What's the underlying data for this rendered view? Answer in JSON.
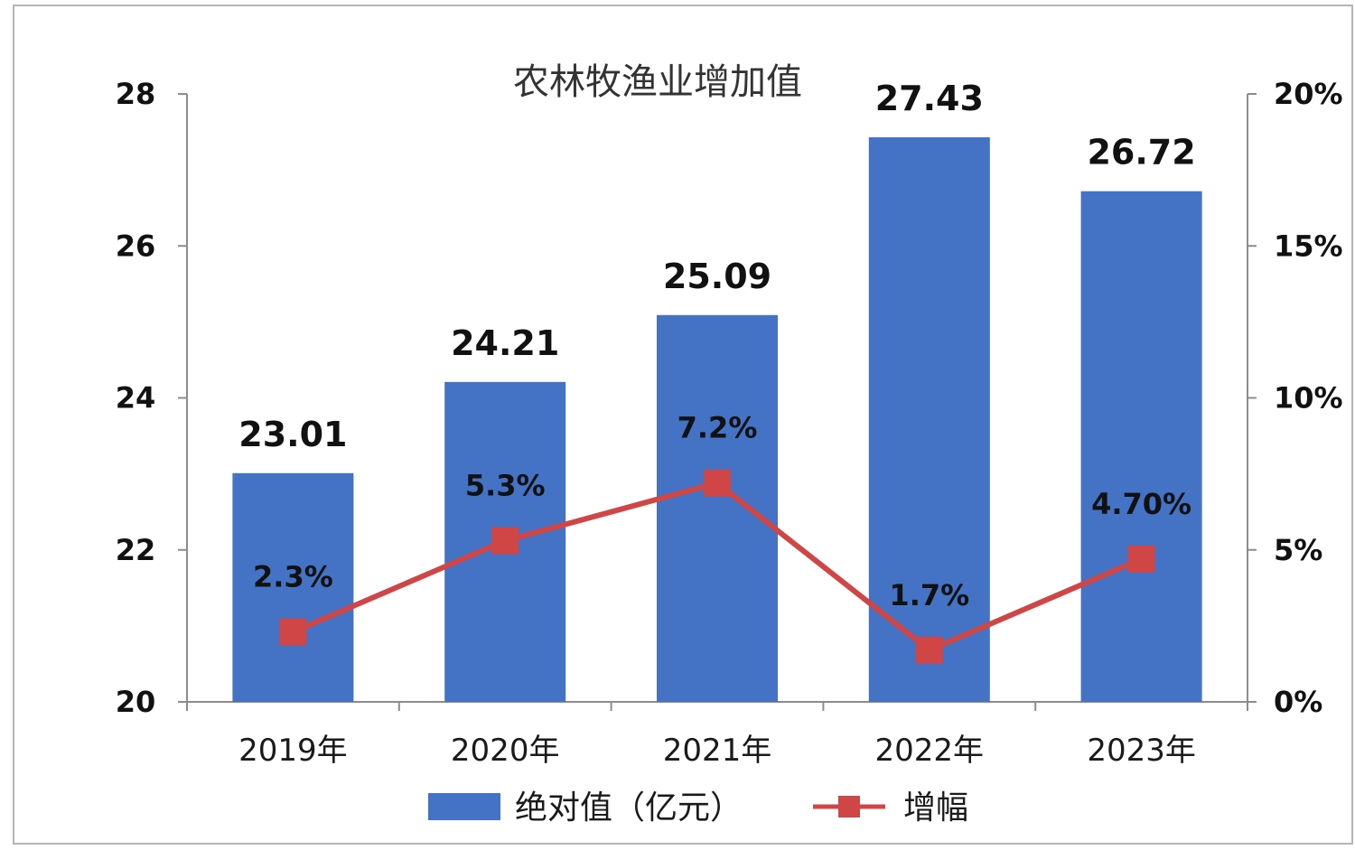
{
  "chart_data": {
    "type": "bar",
    "title": "农林牧渔业增加值",
    "categories": [
      "2019年",
      "2020年",
      "2021年",
      "2022年",
      "2023年"
    ],
    "series": [
      {
        "name": "绝对值（亿元）",
        "type": "bar",
        "axis": "left",
        "color": "#4472C4",
        "values": [
          23.01,
          24.21,
          25.09,
          27.43,
          26.72
        ],
        "labels": [
          "23.01",
          "24.21",
          "25.09",
          "27.43",
          "26.72"
        ]
      },
      {
        "name": "增幅",
        "type": "line",
        "axis": "right",
        "color": "#D04545",
        "values": [
          2.3,
          5.3,
          7.2,
          1.7,
          4.7
        ],
        "labels": [
          "2.3%",
          "5.3%",
          "7.2%",
          "1.7%",
          "4.70%"
        ]
      }
    ],
    "y_left": {
      "ylim": [
        20,
        28
      ],
      "ticks": [
        20,
        22,
        24,
        26,
        28
      ],
      "tick_labels": [
        "20",
        "22",
        "24",
        "26",
        "28"
      ]
    },
    "y_right": {
      "ylim": [
        0,
        20
      ],
      "ticks": [
        0,
        5,
        10,
        15,
        20
      ],
      "tick_labels": [
        "0%",
        "5%",
        "10%",
        "15%",
        "20%"
      ]
    },
    "grid": false,
    "legend_position": "bottom"
  }
}
